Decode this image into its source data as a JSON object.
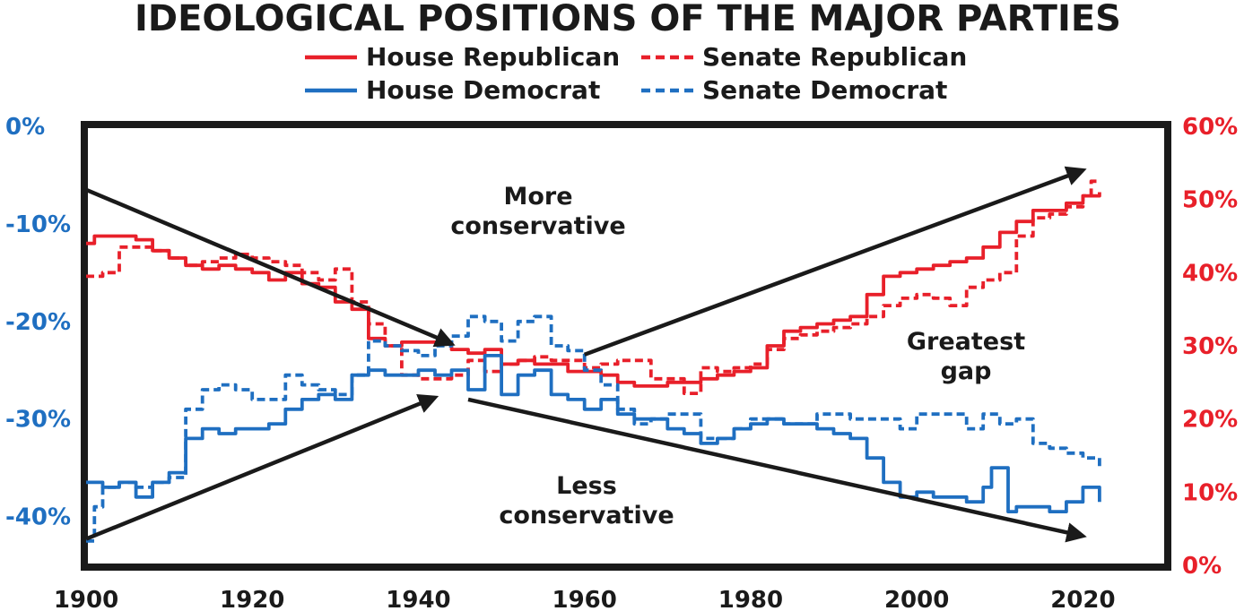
{
  "colors": {
    "republican": "#e8202a",
    "democrat": "#1f6fc1",
    "ink": "#1a1a1a"
  },
  "chart_data": {
    "type": "line",
    "title": "IDEOLOGICAL POSITIONS OF THE MAJOR PARTIES",
    "xlabel": "",
    "xlim": [
      1900,
      2030
    ],
    "x_ticks": [
      1900,
      1920,
      1940,
      1960,
      1980,
      2000,
      2020
    ],
    "left_axis": {
      "range": [
        -45,
        0
      ],
      "ticks": [
        0,
        -10,
        -20,
        -30,
        -40
      ],
      "tick_labels": [
        "0%",
        "-10%",
        "-20%",
        "-30%",
        "-40%"
      ],
      "series": [
        "House Democrat",
        "Senate Democrat"
      ]
    },
    "right_axis": {
      "range": [
        0,
        60
      ],
      "ticks": [
        60,
        50,
        40,
        30,
        20,
        10,
        0
      ],
      "tick_labels": [
        "60%",
        "50%",
        "40%",
        "30%",
        "20%",
        "10%",
        "0%"
      ],
      "series": [
        "House Republican",
        "Senate Republican"
      ]
    },
    "legend": {
      "placement": "top",
      "entries": [
        {
          "label": "House Republican",
          "color": "#e8202a",
          "style": "solid"
        },
        {
          "label": "Senate Republican",
          "color": "#e8202a",
          "style": "dashed"
        },
        {
          "label": "House Democrat",
          "color": "#1f6fc1",
          "style": "solid"
        },
        {
          "label": "Senate Democrat",
          "color": "#1f6fc1",
          "style": "dashed"
        }
      ]
    },
    "annotations": {
      "more_conservative": [
        "More",
        "conservative"
      ],
      "less_conservative": [
        "Less",
        "conservative"
      ],
      "greatest_gap": [
        "Greatest",
        "gap"
      ]
    },
    "arrows": [
      {
        "from": [
          1900,
          -6.5
        ],
        "to": [
          1944,
          -22.3
        ]
      },
      {
        "from": [
          1900,
          -42.3
        ],
        "to": [
          1942,
          -27.8
        ]
      },
      {
        "from": [
          1946,
          -28
        ],
        "to": [
          2020,
          -42
        ]
      },
      {
        "from": [
          1960,
          -23.4
        ],
        "to": [
          2020,
          -4.5
        ]
      }
    ],
    "series": [
      {
        "name": "House Republican",
        "axis": "right",
        "color": "#e8202a",
        "style": "solid",
        "x": [
          1900,
          1901,
          1903,
          1905,
          1906,
          1908,
          1910,
          1912,
          1914,
          1916,
          1918,
          1920,
          1922,
          1924,
          1926,
          1928,
          1930,
          1932,
          1934,
          1936,
          1938,
          1940,
          1942,
          1944,
          1946,
          1948,
          1950,
          1952,
          1954,
          1956,
          1958,
          1960,
          1962,
          1964,
          1966,
          1968,
          1970,
          1972,
          1974,
          1976,
          1978,
          1980,
          1982,
          1984,
          1986,
          1988,
          1990,
          1992,
          1994,
          1996,
          1998,
          2000,
          2002,
          2004,
          2006,
          2008,
          2010,
          2012,
          2014,
          2016,
          2018,
          2020,
          2022
        ],
        "y": [
          44,
          45,
          45,
          45,
          44.5,
          43,
          42,
          41,
          40.5,
          41,
          40.5,
          40,
          39,
          40,
          38.5,
          38,
          36,
          35,
          31,
          30,
          30.5,
          30.5,
          30.5,
          29.5,
          29,
          29.5,
          27.5,
          28,
          27.5,
          27.5,
          26.5,
          26.5,
          26,
          25,
          24.5,
          24.5,
          25,
          25,
          25.5,
          26,
          26.5,
          27,
          30,
          32,
          32.5,
          33,
          33.5,
          34,
          37,
          39.5,
          40,
          40.5,
          41,
          41.5,
          42,
          43.5,
          45.5,
          47,
          48.5,
          48.5,
          49.5,
          50.5,
          51
        ]
      },
      {
        "name": "Senate Republican",
        "axis": "right",
        "color": "#e8202a",
        "style": "dashed",
        "x": [
          1900,
          1902,
          1904,
          1906,
          1908,
          1910,
          1912,
          1914,
          1916,
          1918,
          1920,
          1922,
          1924,
          1926,
          1928,
          1930,
          1932,
          1934,
          1936,
          1938,
          1940,
          1942,
          1944,
          1946,
          1948,
          1950,
          1952,
          1954,
          1956,
          1958,
          1960,
          1962,
          1964,
          1966,
          1968,
          1970,
          1972,
          1974,
          1976,
          1978,
          1980,
          1982,
          1984,
          1986,
          1988,
          1990,
          1992,
          1994,
          1996,
          1998,
          2000,
          2002,
          2004,
          2006,
          2008,
          2010,
          2012,
          2014,
          2016,
          2018,
          2020,
          2021,
          2022
        ],
        "y": [
          39.5,
          40,
          43.5,
          43.5,
          43,
          42,
          41,
          41.5,
          42,
          42.5,
          42,
          41.5,
          41,
          40,
          39,
          40.5,
          36,
          33,
          30,
          26,
          25.5,
          25.5,
          26,
          28,
          26.5,
          27.5,
          28,
          28.5,
          28,
          28,
          27,
          27.5,
          28,
          28,
          25.5,
          25.5,
          23.5,
          27,
          26.5,
          27,
          27.5,
          29.5,
          31,
          31.5,
          32,
          32.5,
          33,
          34,
          35.5,
          36.5,
          37,
          36.5,
          35.5,
          38,
          39,
          40,
          45,
          47.5,
          48,
          49,
          50.5,
          52.5,
          52.5
        ]
      },
      {
        "name": "House Democrat",
        "axis": "left",
        "color": "#1f6fc1",
        "style": "solid",
        "x": [
          1900,
          1902,
          1904,
          1906,
          1908,
          1910,
          1912,
          1914,
          1916,
          1918,
          1920,
          1922,
          1924,
          1926,
          1928,
          1930,
          1932,
          1934,
          1936,
          1938,
          1940,
          1942,
          1944,
          1946,
          1948,
          1950,
          1952,
          1954,
          1956,
          1958,
          1960,
          1962,
          1964,
          1966,
          1968,
          1970,
          1972,
          1974,
          1976,
          1978,
          1980,
          1982,
          1984,
          1986,
          1988,
          1990,
          1992,
          1994,
          1996,
          1998,
          2000,
          2002,
          2004,
          2006,
          2008,
          2009,
          2010,
          2011,
          2012,
          2014,
          2016,
          2018,
          2020,
          2022
        ],
        "y": [
          -36.5,
          -37,
          -36.5,
          -38,
          -36.5,
          -35.5,
          -32,
          -31,
          -31.5,
          -31,
          -31,
          -30.5,
          -29,
          -28,
          -27.5,
          -28,
          -25.5,
          -25,
          -25.5,
          -25.5,
          -25,
          -25.5,
          -25,
          -27,
          -23.5,
          -27.5,
          -25.5,
          -25,
          -27.5,
          -28,
          -29,
          -28,
          -29.5,
          -30,
          -30,
          -31,
          -31.5,
          -32.5,
          -32,
          -31,
          -30.5,
          -30,
          -30.5,
          -30.5,
          -31,
          -31.5,
          -32,
          -34,
          -36.5,
          -38,
          -37.5,
          -38,
          -38,
          -38.5,
          -37,
          -35,
          -35,
          -39.5,
          -39,
          -39,
          -39.5,
          -38.5,
          -37,
          -38.5
        ]
      },
      {
        "name": "Senate Democrat",
        "axis": "left",
        "color": "#1f6fc1",
        "style": "dashed",
        "x": [
          1900,
          1901,
          1902,
          1904,
          1906,
          1908,
          1910,
          1912,
          1914,
          1916,
          1918,
          1920,
          1922,
          1924,
          1926,
          1928,
          1930,
          1932,
          1934,
          1936,
          1938,
          1940,
          1942,
          1944,
          1946,
          1948,
          1950,
          1952,
          1954,
          1956,
          1958,
          1960,
          1962,
          1964,
          1966,
          1968,
          1970,
          1972,
          1974,
          1976,
          1978,
          1980,
          1982,
          1984,
          1986,
          1988,
          1990,
          1992,
          1994,
          1996,
          1998,
          2000,
          2002,
          2004,
          2006,
          2008,
          2010,
          2012,
          2014,
          2016,
          2018,
          2020,
          2022
        ],
        "y": [
          -42.5,
          -39,
          -37,
          -36.5,
          -37,
          -36.5,
          -36,
          -29,
          -27,
          -26.5,
          -27,
          -28,
          -28,
          -25.5,
          -26.5,
          -27,
          -27.5,
          -25.5,
          -22,
          -22.5,
          -23,
          -23.5,
          -22.5,
          -21.5,
          -19.5,
          -20,
          -22,
          -20,
          -19.5,
          -22.5,
          -23,
          -25,
          -26.5,
          -29,
          -30.5,
          -30,
          -29.5,
          -29.5,
          -32,
          -32,
          -31,
          -30,
          -30,
          -30.5,
          -30.5,
          -29.5,
          -29.5,
          -30,
          -30,
          -30,
          -31,
          -29.5,
          -29.5,
          -29.5,
          -31,
          -29.5,
          -30.5,
          -30,
          -32.5,
          -33,
          -33.5,
          -34,
          -35
        ]
      }
    ]
  }
}
